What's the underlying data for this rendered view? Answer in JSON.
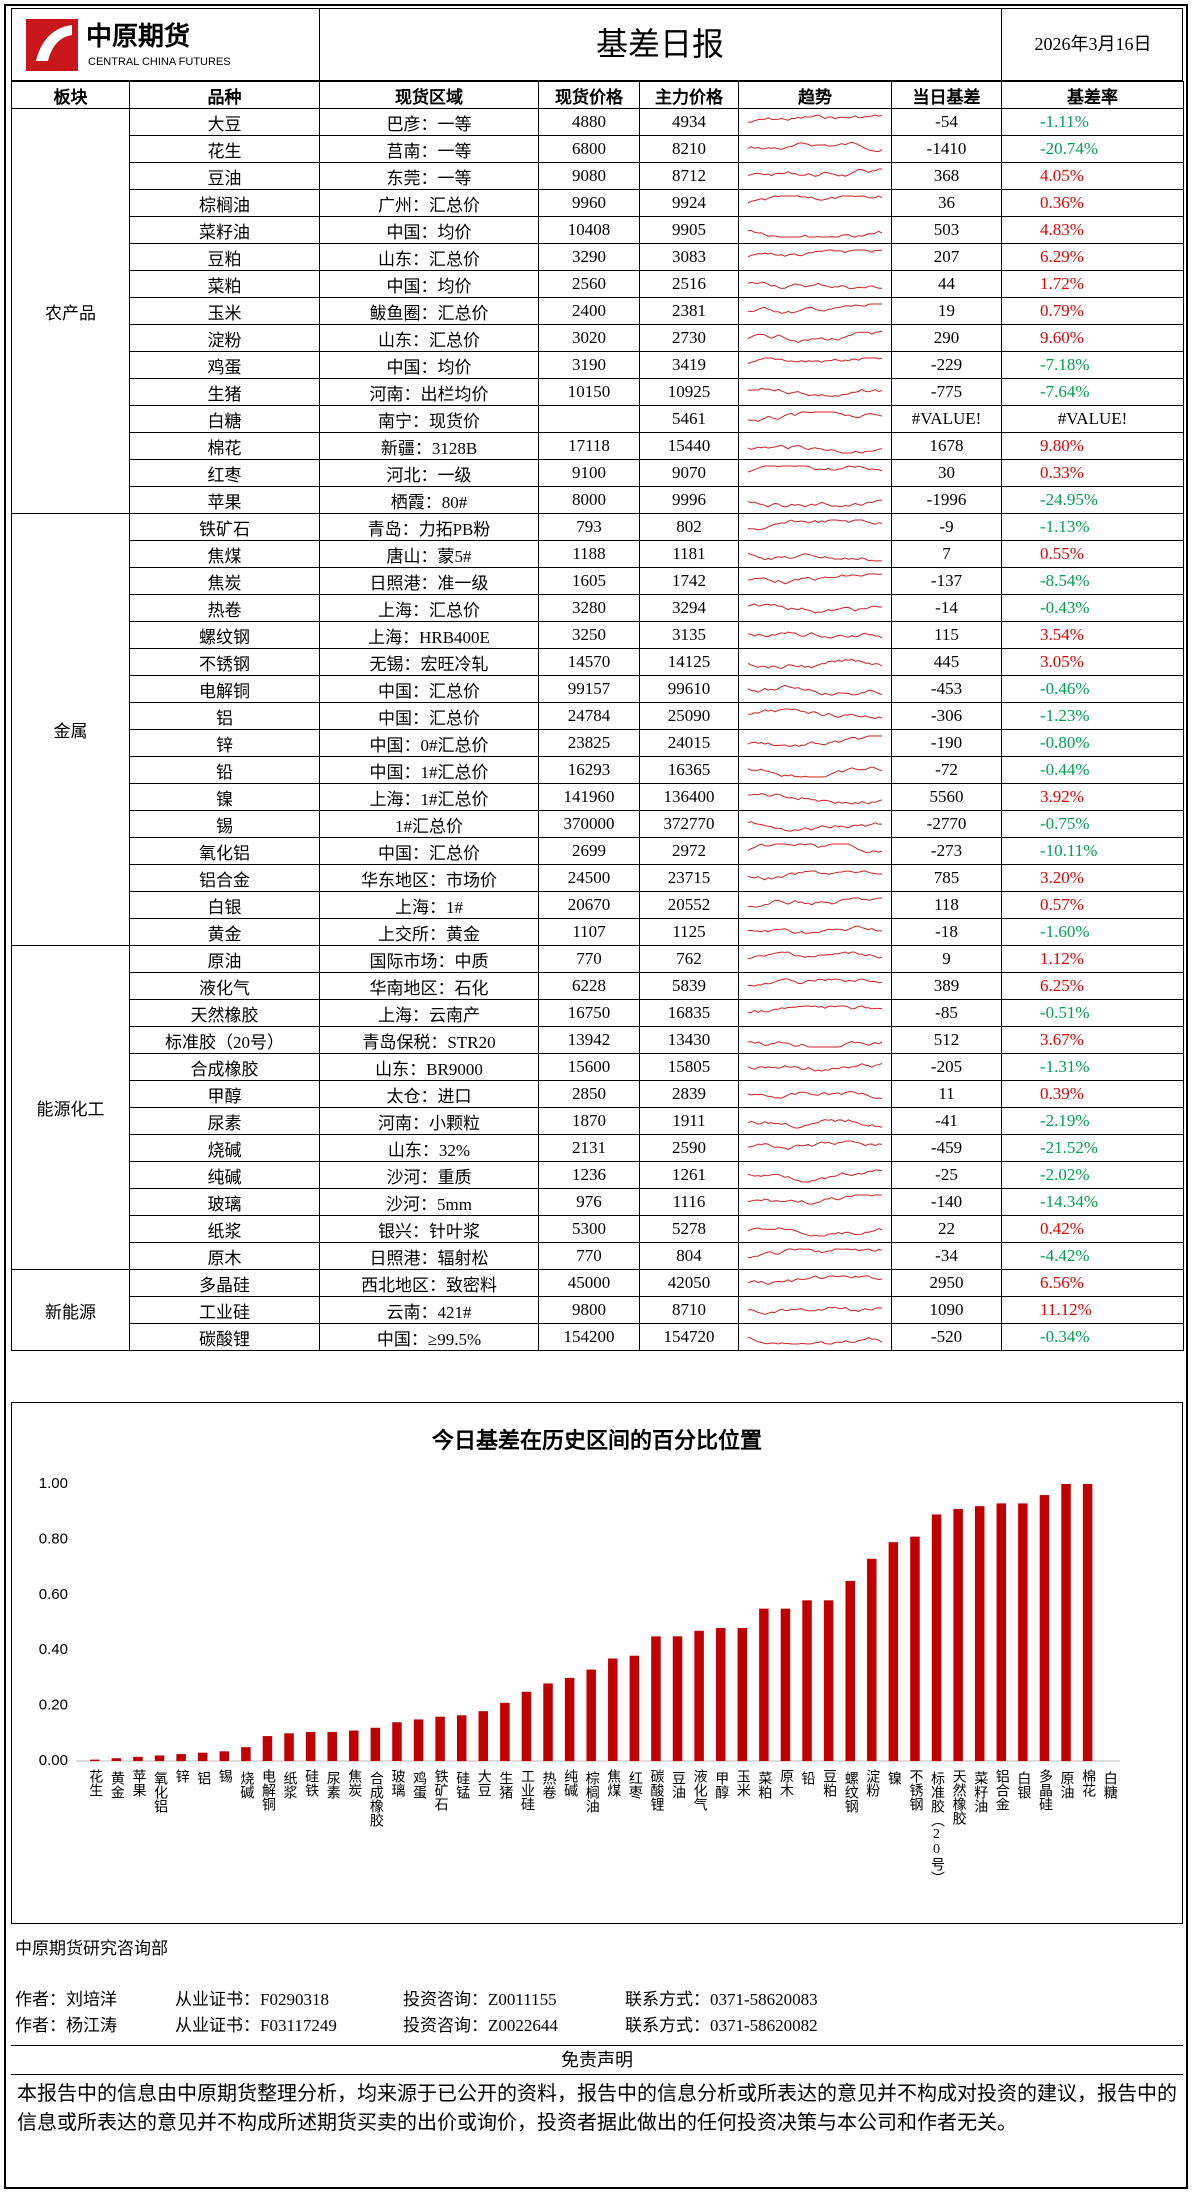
{
  "header": {
    "logo_cn": "中原期货",
    "logo_en": "CENTRAL CHINA FUTURES",
    "title": "基差日报",
    "date": "2026年3月16日"
  },
  "table": {
    "headers": [
      "板块",
      "品种",
      "现货区域",
      "现货价格",
      "主力价格",
      "趋势",
      "当日基差",
      "基差率"
    ],
    "sections": [
      {
        "name": "农产品",
        "rows": [
          [
            "大豆",
            "巴彦：一等",
            4880,
            4934,
            -54,
            "-1.11%"
          ],
          [
            "花生",
            "莒南：一等",
            6800,
            8210,
            -1410,
            "-20.74%"
          ],
          [
            "豆油",
            "东莞：一等",
            9080,
            8712,
            368,
            "4.05%"
          ],
          [
            "棕榈油",
            "广州：汇总价",
            9960,
            9924,
            36,
            "0.36%"
          ],
          [
            "菜籽油",
            "中国：均价",
            10408,
            9905,
            503,
            "4.83%"
          ],
          [
            "豆粕",
            "山东：汇总价",
            3290,
            3083,
            207,
            "6.29%"
          ],
          [
            "菜粕",
            "中国：均价",
            2560,
            2516,
            44,
            "1.72%"
          ],
          [
            "玉米",
            "鲅鱼圈：汇总价",
            2400,
            2381,
            19,
            "0.79%"
          ],
          [
            "淀粉",
            "山东：汇总价",
            3020,
            2730,
            290,
            "9.60%"
          ],
          [
            "鸡蛋",
            "中国：均价",
            3190,
            3419,
            -229,
            "-7.18%"
          ],
          [
            "生猪",
            "河南：出栏均价",
            10150,
            10925,
            -775,
            "-7.64%"
          ],
          [
            "白糖",
            "南宁：现货价",
            null,
            5461,
            "#VALUE!",
            "#VALUE!"
          ],
          [
            "棉花",
            "新疆：3128B",
            17118,
            15440,
            1678,
            "9.80%"
          ],
          [
            "红枣",
            "河北：一级",
            9100,
            9070,
            30,
            "0.33%"
          ],
          [
            "苹果",
            "栖霞：80#",
            8000,
            9996,
            -1996,
            "-24.95%"
          ]
        ]
      },
      {
        "name": "金属",
        "rows": [
          [
            "铁矿石",
            "青岛：力拓PB粉",
            793,
            802,
            -9,
            "-1.13%"
          ],
          [
            "焦煤",
            "唐山：蒙5#",
            1188,
            1181,
            7,
            "0.55%"
          ],
          [
            "焦炭",
            "日照港：准一级",
            1605,
            1742,
            -137,
            "-8.54%"
          ],
          [
            "热卷",
            "上海：汇总价",
            3280,
            3294,
            -14,
            "-0.43%"
          ],
          [
            "螺纹钢",
            "上海：HRB400E",
            3250,
            3135,
            115,
            "3.54%"
          ],
          [
            "不锈钢",
            "无锡：宏旺冷轧",
            14570,
            14125,
            445,
            "3.05%"
          ],
          [
            "电解铜",
            "中国：汇总价",
            99157,
            99610,
            -453,
            "-0.46%"
          ],
          [
            "铝",
            "中国：汇总价",
            24784,
            25090,
            -306,
            "-1.23%"
          ],
          [
            "锌",
            "中国：0#汇总价",
            23825,
            24015,
            -190,
            "-0.80%"
          ],
          [
            "铅",
            "中国：1#汇总价",
            16293,
            16365,
            -72,
            "-0.44%"
          ],
          [
            "镍",
            "上海：1#汇总价",
            141960,
            136400,
            5560,
            "3.92%"
          ],
          [
            "锡",
            "1#汇总价",
            370000,
            372770,
            -2770,
            "-0.75%"
          ],
          [
            "氧化铝",
            "中国：汇总价",
            2699,
            2972,
            -273,
            "-10.11%"
          ],
          [
            "铝合金",
            "华东地区：市场价",
            24500,
            23715,
            785,
            "3.20%"
          ],
          [
            "白银",
            "上海：1#",
            20670,
            20552,
            118,
            "0.57%"
          ],
          [
            "黄金",
            "上交所：黄金",
            1107,
            1125,
            -18,
            "-1.60%"
          ]
        ]
      },
      {
        "name": "能源化工",
        "rows": [
          [
            "原油",
            "国际市场：中质",
            770,
            762,
            9,
            "1.12%"
          ],
          [
            "液化气",
            "华南地区：石化",
            6228,
            5839,
            389,
            "6.25%"
          ],
          [
            "天然橡胶",
            "上海：云南产",
            16750,
            16835,
            -85,
            "-0.51%"
          ],
          [
            "标准胶（20号）",
            "青岛保税：STR20",
            13942,
            13430,
            512,
            "3.67%"
          ],
          [
            "合成橡胶",
            "山东：BR9000",
            15600,
            15805,
            -205,
            "-1.31%"
          ],
          [
            "甲醇",
            "太仓：进口",
            2850,
            2839,
            11,
            "0.39%"
          ],
          [
            "尿素",
            "河南：小颗粒",
            1870,
            1911,
            -41,
            "-2.19%"
          ],
          [
            "烧碱",
            "山东：32%",
            2131,
            2590,
            -459,
            "-21.52%"
          ],
          [
            "纯碱",
            "沙河：重质",
            1236,
            1261,
            -25,
            "-2.02%"
          ],
          [
            "玻璃",
            "沙河：5mm",
            976,
            1116,
            -140,
            "-14.34%"
          ],
          [
            "纸浆",
            "银兴：针叶浆",
            5300,
            5278,
            22,
            "0.42%"
          ],
          [
            "原木",
            "日照港：辐射松",
            770,
            804,
            -34,
            "-4.42%"
          ]
        ]
      },
      {
        "name": "新能源",
        "rows": [
          [
            "多晶硅",
            "西北地区：致密料",
            45000,
            42050,
            2950,
            "6.56%"
          ],
          [
            "工业硅",
            "云南：421#",
            9800,
            8710,
            1090,
            "11.12%"
          ],
          [
            "碳酸锂",
            "中国：≥99.5%",
            154200,
            154720,
            -520,
            "-0.34%"
          ]
        ]
      }
    ]
  },
  "chart_data": {
    "type": "bar",
    "title": "今日基差在历史区间的百分比位置",
    "color": "#c00000",
    "categories": [
      "花生",
      "黄金",
      "苹果",
      "氧化铝",
      "锌",
      "铝",
      "锡",
      "烧碱",
      "电解铜",
      "纸浆",
      "硅铁",
      "尿素",
      "焦炭",
      "合成橡胶",
      "玻璃",
      "鸡蛋",
      "铁矿石",
      "硅锰",
      "大豆",
      "生猪",
      "工业硅",
      "热卷",
      "纯碱",
      "棕榈油",
      "焦煤",
      "红枣",
      "碳酸锂",
      "豆油",
      "液化气",
      "甲醇",
      "玉米",
      "菜粕",
      "原木",
      "铅",
      "豆粕",
      "螺纹钢",
      "淀粉",
      "镍",
      "不锈钢",
      "标准胶（20号）",
      "天然橡胶",
      "菜籽油",
      "铝合金",
      "白银",
      "多晶硅",
      "原油",
      "棉花",
      "白糖"
    ],
    "values": [
      0.005,
      0.01,
      0.015,
      0.02,
      0.025,
      0.03,
      0.035,
      0.05,
      0.09,
      0.1,
      0.105,
      0.105,
      0.11,
      0.12,
      0.14,
      0.15,
      0.16,
      0.165,
      0.18,
      0.21,
      0.25,
      0.28,
      0.3,
      0.33,
      0.37,
      0.38,
      0.45,
      0.45,
      0.47,
      0.48,
      0.48,
      0.55,
      0.55,
      0.58,
      0.58,
      0.65,
      0.73,
      0.79,
      0.81,
      0.89,
      0.91,
      0.92,
      0.93,
      0.93,
      0.96,
      1.0,
      1.0,
      null
    ],
    "ylim": [
      0,
      1
    ],
    "yticks": [
      {
        "value": 0,
        "label": "0.00"
      },
      {
        "value": 0.2,
        "label": "0.20"
      },
      {
        "value": 0.4,
        "label": "0.40"
      },
      {
        "value": 0.6,
        "label": "0.60"
      },
      {
        "value": 0.8,
        "label": "0.80"
      },
      {
        "value": 1,
        "label": "1.00"
      }
    ],
    "grid": false
  },
  "footer": {
    "department": "中原期货研究咨询部",
    "authors": [
      [
        "作者：刘培洋",
        "从业证书：F0290318",
        "投资咨询：Z0011155",
        "联系方式：0371-58620083"
      ],
      [
        "作者：杨江涛",
        "从业证书：F03117249",
        "投资咨询：Z0022644",
        "联系方式：0371-58620082"
      ]
    ],
    "disclaimer_title": "免责声明",
    "disclaimer": "本报告中的信息由中原期货整理分析，均来源于已公开的资料，报告中的信息分析或所表达的意见并不构成对投资的建议，报告中的信息或所表达的意见并不构成所述期货买卖的出价或询价，投资者据此做出的任何投资决策与本公司和作者无关。"
  }
}
